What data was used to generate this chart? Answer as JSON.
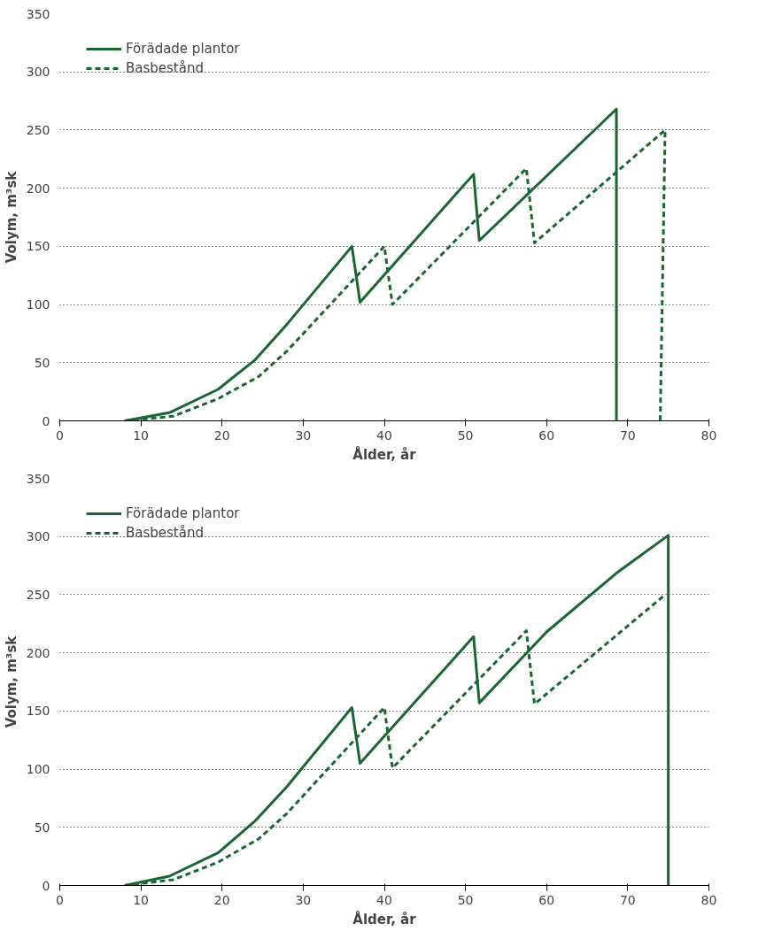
{
  "chart_data": [
    {
      "type": "line",
      "xlabel": "Ålder, år",
      "ylabel": "Volym, m³sk",
      "xlim": [
        0,
        80
      ],
      "ylim": [
        0,
        350
      ],
      "xticks": [
        0,
        10,
        20,
        30,
        40,
        50,
        60,
        70,
        80
      ],
      "yticks": [
        0,
        50,
        100,
        150,
        200,
        250,
        300,
        350
      ],
      "grid": "y",
      "legend": "top left",
      "series": [
        {
          "name": "Förädade plantor",
          "color": "#1a6632",
          "line_style": "solid",
          "x": [
            8,
            13.5,
            19.5,
            24,
            28,
            36,
            37,
            51,
            51.7,
            68.6,
            68.6
          ],
          "values": [
            0,
            7,
            27,
            52,
            83,
            150,
            102,
            212,
            155,
            268,
            0
          ]
        },
        {
          "name": "Basbestånd",
          "color": "#1a6632",
          "line_style": "dashed",
          "x": [
            8,
            14,
            19.5,
            24.5,
            28,
            40,
            41,
            57.5,
            58.5,
            74.6,
            74
          ],
          "values": [
            0,
            4,
            19,
            38,
            60,
            150,
            100,
            217,
            153,
            250,
            0
          ]
        }
      ]
    },
    {
      "type": "line",
      "xlabel": "Ålder, år",
      "ylabel": "Volym, m³sk",
      "xlim": [
        0,
        80
      ],
      "ylim": [
        0,
        350
      ],
      "xticks": [
        0,
        10,
        20,
        30,
        40,
        50,
        60,
        70,
        80
      ],
      "yticks": [
        0,
        50,
        100,
        150,
        200,
        250,
        300,
        350
      ],
      "grid": "y",
      "legend": "top left",
      "series": [
        {
          "name": "Förädade plantor",
          "color": "#1a6632",
          "line_style": "solid",
          "x": [
            8,
            13.5,
            19.5,
            24,
            28,
            36,
            37,
            51,
            51.7,
            60,
            68.5,
            75,
            75
          ],
          "values": [
            0,
            8,
            28,
            55,
            85,
            153,
            105,
            214,
            157,
            218,
            268,
            301,
            0
          ]
        },
        {
          "name": "Basbestånd",
          "color": "#1a6632",
          "line_style": "dashed",
          "x": [
            8,
            14,
            19.5,
            24.5,
            28,
            40,
            41,
            57.5,
            58.5,
            74.6
          ],
          "values": [
            0,
            5,
            20,
            40,
            62,
            153,
            101,
            219,
            156,
            250
          ]
        }
      ]
    }
  ]
}
